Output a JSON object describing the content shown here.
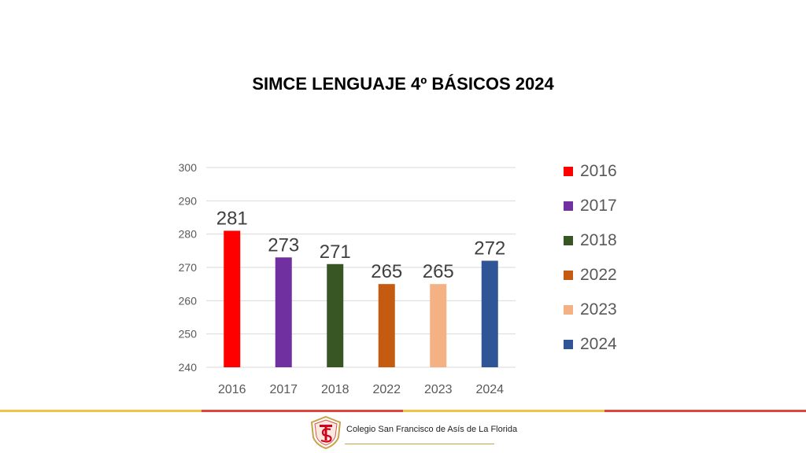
{
  "slide": {
    "title": "SIMCE LENGUAJE 4º BÁSICOS 2024"
  },
  "chart_data": {
    "type": "bar",
    "title": "",
    "categories": [
      "2016",
      "2017",
      "2018",
      "2022",
      "2023",
      "2024"
    ],
    "values": [
      281,
      273,
      271,
      265,
      265,
      272
    ],
    "colors": [
      "#ff0000",
      "#7030a0",
      "#375623",
      "#c55a11",
      "#f4b183",
      "#2f5597"
    ],
    "ylim": [
      240,
      300
    ],
    "yticks": [
      240,
      250,
      260,
      270,
      280,
      290,
      300
    ],
    "grid": true,
    "legend_position": "right",
    "legend": [
      "2016",
      "2017",
      "2018",
      "2022",
      "2023",
      "2024"
    ],
    "data_labels": true
  },
  "footer": {
    "school_name": "Colegio San Francisco de Asís de La Florida",
    "line_colors": [
      "#f2c14e",
      "#e0463e",
      "#f2c14e",
      "#e0463e"
    ]
  }
}
